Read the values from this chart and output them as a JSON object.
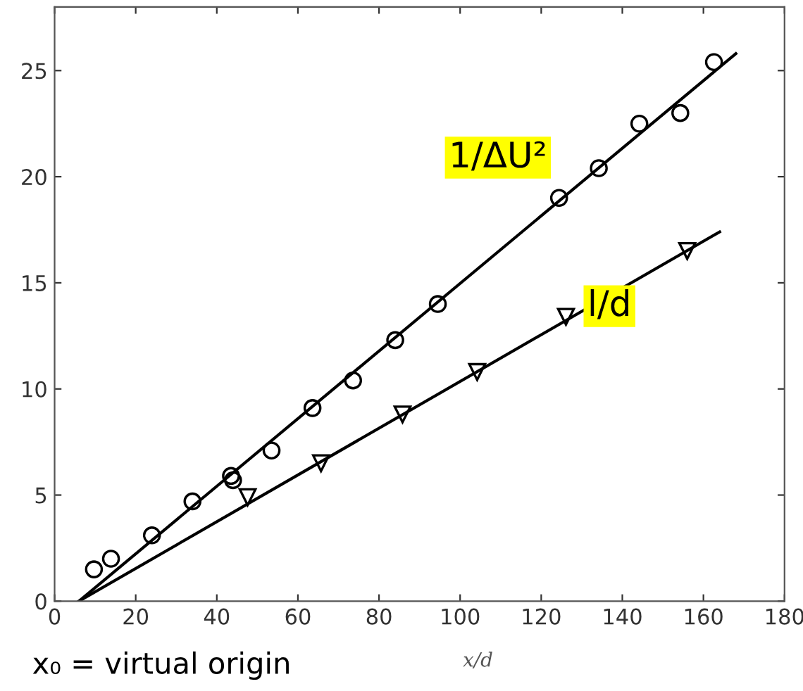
{
  "chart_data": {
    "type": "scatter",
    "xlabel": "x/d",
    "xlim": [
      0,
      180
    ],
    "ylim": [
      0,
      28
    ],
    "xticks": [
      0,
      20,
      40,
      60,
      80,
      100,
      120,
      140,
      160,
      180
    ],
    "yticks": [
      0,
      5,
      10,
      15,
      20,
      25
    ],
    "grid": false,
    "legend": false,
    "series": [
      {
        "name": "1/ΔU²",
        "color": "#000000",
        "marker": "circle",
        "x": [
          9.7,
          13.9,
          24,
          34,
          43.5,
          44,
          53.5,
          63.6,
          73.6,
          84,
          94.5,
          124.4,
          134.2,
          144.2,
          154.3,
          162.6
        ],
        "values": [
          1.5,
          2.0,
          3.1,
          4.7,
          5.9,
          5.7,
          7.1,
          9.1,
          10.4,
          12.3,
          14.0,
          19.0,
          20.4,
          22.5,
          23.0,
          25.4
        ]
      },
      {
        "name": "l/d",
        "color": "#000000",
        "marker": "triangle",
        "x": [
          47.6,
          65.7,
          85.8,
          104.2,
          126.1,
          156
        ],
        "values": [
          4.9,
          6.5,
          8.8,
          10.8,
          13.4,
          16.5
        ]
      },
      {
        "type": "line",
        "color": "#000000",
        "marker": "none",
        "x": [
          6,
          168
        ],
        "values": [
          0,
          25.8
        ]
      },
      {
        "type": "line",
        "color": "#000000",
        "marker": "none",
        "x": [
          6,
          164
        ],
        "values": [
          0,
          17.4
        ]
      }
    ],
    "annotations": [
      "x₀ = virtual origin"
    ]
  }
}
